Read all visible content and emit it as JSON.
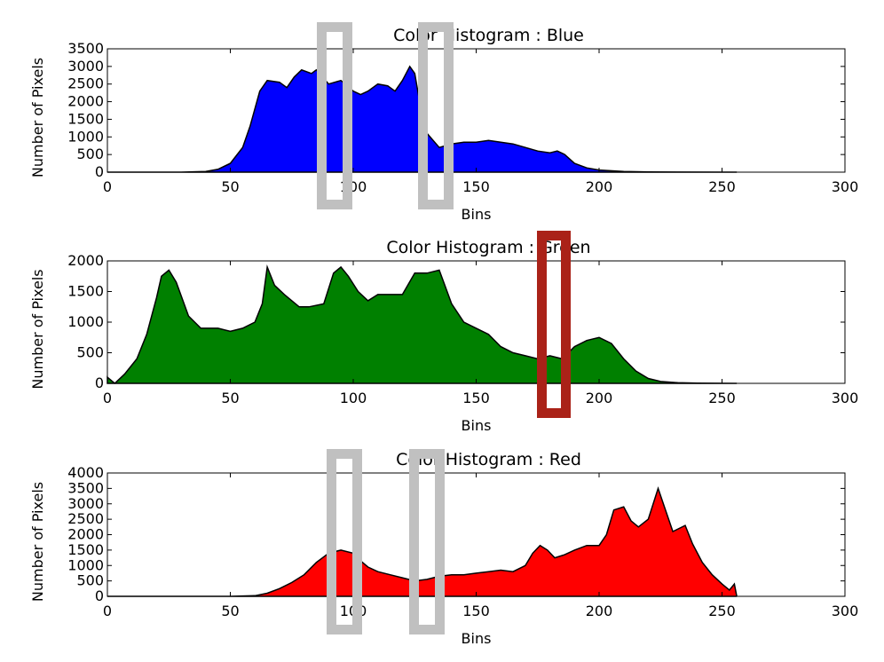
{
  "chart_data": [
    {
      "type": "area",
      "title": "Color Histogram : Blue",
      "xlabel": "Bins",
      "ylabel": "Number of Pixels",
      "xlim": [
        0,
        300
      ],
      "ylim": [
        0,
        3500
      ],
      "xticks": [
        0,
        50,
        100,
        150,
        200,
        250,
        300
      ],
      "yticks": [
        0,
        500,
        1000,
        1500,
        2000,
        2500,
        3000,
        3500
      ],
      "series": [
        {
          "color": "#0000ff",
          "x": [
            0,
            30,
            40,
            45,
            50,
            55,
            58,
            62,
            65,
            70,
            73,
            76,
            79,
            83,
            85,
            90,
            95,
            100,
            103,
            106,
            110,
            114,
            117,
            120,
            123,
            125,
            127,
            130,
            135,
            140,
            145,
            150,
            155,
            160,
            165,
            170,
            175,
            180,
            183,
            186,
            190,
            195,
            200,
            210,
            220,
            256
          ],
          "y": [
            0,
            0,
            20,
            80,
            250,
            700,
            1300,
            2300,
            2600,
            2550,
            2400,
            2700,
            2900,
            2800,
            2900,
            2500,
            2600,
            2300,
            2200,
            2300,
            2500,
            2450,
            2300,
            2600,
            3000,
            2800,
            2000,
            1100,
            700,
            800,
            850,
            850,
            900,
            850,
            800,
            700,
            600,
            550,
            600,
            500,
            250,
            120,
            60,
            20,
            5,
            0
          ]
        }
      ]
    },
    {
      "type": "area",
      "title": "Color Histogram : Green",
      "xlabel": "Bins",
      "ylabel": "Number of Pixels",
      "xlim": [
        0,
        300
      ],
      "ylim": [
        0,
        2000
      ],
      "xticks": [
        0,
        50,
        100,
        150,
        200,
        250,
        300
      ],
      "yticks": [
        0,
        500,
        1000,
        1500,
        2000
      ],
      "series": [
        {
          "color": "#008000",
          "x": [
            0,
            3,
            7,
            12,
            16,
            20,
            22,
            25,
            28,
            33,
            38,
            45,
            50,
            55,
            60,
            63,
            65,
            68,
            72,
            78,
            82,
            88,
            92,
            95,
            98,
            102,
            106,
            110,
            115,
            120,
            125,
            130,
            135,
            140,
            145,
            150,
            155,
            160,
            165,
            170,
            175,
            180,
            185,
            190,
            195,
            200,
            205,
            210,
            215,
            220,
            225,
            232,
            240,
            256
          ],
          "y": [
            100,
            0,
            150,
            400,
            800,
            1400,
            1750,
            1850,
            1650,
            1100,
            900,
            900,
            850,
            900,
            1000,
            1300,
            1900,
            1600,
            1450,
            1250,
            1250,
            1300,
            1800,
            1900,
            1750,
            1500,
            1350,
            1450,
            1450,
            1450,
            1800,
            1800,
            1850,
            1300,
            1000,
            900,
            800,
            600,
            500,
            450,
            400,
            450,
            400,
            600,
            700,
            750,
            650,
            400,
            200,
            80,
            30,
            10,
            3,
            0
          ]
        }
      ]
    },
    {
      "type": "area",
      "title": "Color Histogram : Red",
      "xlabel": "Bins",
      "ylabel": "Number of Pixels",
      "xlim": [
        0,
        300
      ],
      "ylim": [
        0,
        4000
      ],
      "xticks": [
        0,
        50,
        100,
        150,
        200,
        250,
        300
      ],
      "yticks": [
        0,
        500,
        1000,
        1500,
        2000,
        2500,
        3000,
        3500,
        4000
      ],
      "series": [
        {
          "color": "#ff0000",
          "x": [
            0,
            50,
            60,
            65,
            70,
            75,
            80,
            85,
            90,
            95,
            100,
            103,
            106,
            110,
            115,
            120,
            125,
            130,
            135,
            140,
            145,
            150,
            155,
            160,
            165,
            170,
            173,
            176,
            179,
            182,
            186,
            190,
            195,
            200,
            203,
            206,
            210,
            213,
            216,
            220,
            224,
            227,
            230,
            235,
            238,
            242,
            246,
            250,
            253,
            255,
            256
          ],
          "y": [
            0,
            0,
            20,
            100,
            250,
            450,
            700,
            1100,
            1400,
            1500,
            1400,
            1150,
            950,
            800,
            700,
            600,
            500,
            550,
            650,
            700,
            700,
            750,
            800,
            850,
            800,
            1000,
            1400,
            1650,
            1500,
            1250,
            1350,
            1500,
            1650,
            1650,
            2000,
            2800,
            2900,
            2450,
            2250,
            2500,
            3500,
            2800,
            2100,
            2300,
            1700,
            1100,
            700,
            400,
            200,
            400,
            0
          ]
        }
      ]
    }
  ]
}
